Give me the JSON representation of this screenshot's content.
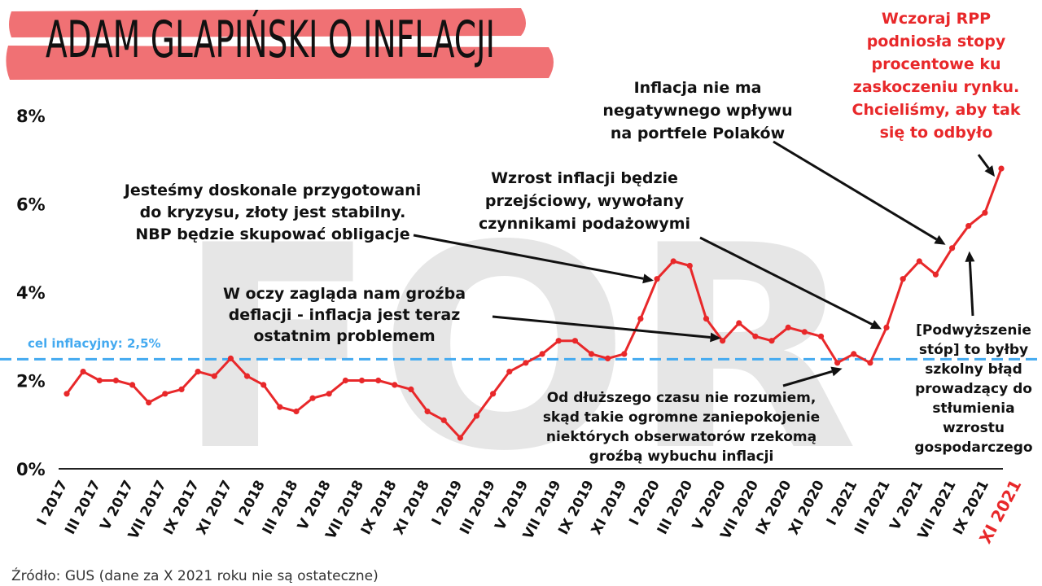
{
  "chart_data": {
    "type": "line",
    "title": "ADAM GLAPIŃSKI O INFLACJI",
    "source": "Źródło: GUS (dane za X 2021 roku nie są ostateczne)",
    "ylim": [
      0,
      8
    ],
    "yticks": [
      "0%",
      "2%",
      "4%",
      "6%",
      "8%"
    ],
    "ytick_values": [
      0,
      2,
      4,
      6,
      8
    ],
    "grid": false,
    "x_labels": [
      "I 2017",
      "III 2017",
      "V 2017",
      "VII 2017",
      "IX 2017",
      "XI 2017",
      "I 2018",
      "III 2018",
      "V 2018",
      "VII 2018",
      "IX 2018",
      "XI 2018",
      "I 2019",
      "III 2019",
      "V 2019",
      "VII 2019",
      "IX 2019",
      "XI 2019",
      "I 2020",
      "III 2020",
      "V 2020",
      "VII 2020",
      "IX 2020",
      "XI 2020",
      "I 2021",
      "III 2021",
      "V 2021",
      "VII 2021",
      "IX 2021",
      "XI 2021"
    ],
    "x_label_highlight_index": 29,
    "series": [
      {
        "values": [
          1.7,
          2.2,
          2.0,
          2.0,
          1.9,
          1.5,
          1.7,
          1.8,
          2.2,
          2.1,
          2.5,
          2.1,
          1.9,
          1.4,
          1.3,
          1.6,
          1.7,
          2.0,
          2.0,
          2.0,
          1.9,
          1.8,
          1.3,
          1.1,
          0.7,
          1.2,
          1.7,
          2.2,
          2.4,
          2.6,
          2.9,
          2.9,
          2.6,
          2.5,
          2.6,
          3.4,
          4.3,
          4.7,
          4.6,
          3.4,
          2.9,
          3.3,
          3.0,
          2.9,
          3.2,
          3.1,
          3.0,
          2.4,
          2.6,
          2.4,
          3.2,
          4.3,
          4.7,
          4.4,
          5.0,
          5.5,
          5.8,
          6.8
        ],
        "color": "#e8282a"
      }
    ],
    "reference_line": {
      "value": 2.5,
      "label": "cel inflacyjny: 2,5%",
      "color": "#44aaf0"
    },
    "annotations": [
      {
        "lines": [
          "Jesteśmy doskonale przygotowani",
          "do kryzysu, złoty jest stabilny.",
          "NBP będzie skupować obligacje"
        ],
        "color": "#111111"
      },
      {
        "lines": [
          "Wzrost inflacji będzie",
          "przejściowy, wywołany",
          "czynnikami podażowymi"
        ],
        "color": "#111111"
      },
      {
        "lines": [
          "Inflacja nie ma",
          "negatywnego wpływu",
          "na portfele Polaków"
        ],
        "color": "#111111"
      },
      {
        "lines": [
          "Wczoraj RPP",
          "podniosła stopy",
          "procentowe ku",
          "zaskoczeniu rynku.",
          "Chcieliśmy, aby tak",
          "się to odbyło"
        ],
        "color": "#e8282a"
      },
      {
        "lines": [
          "W oczy zagląda nam groźba",
          "deflacji - inflacja jest teraz",
          "ostatnim problemem"
        ],
        "color": "#111111"
      },
      {
        "lines": [
          "Od dłuższego czasu nie rozumiem,",
          "skąd takie ogromne zaniepokojenie",
          "niektórych obserwatorów rzekomą",
          "groźbą wybuchu inflacji"
        ],
        "color": "#111111"
      },
      {
        "lines": [
          "[Podwyższenie",
          "stóp] to byłby",
          "szkolny błąd",
          "prowadzący do",
          "stłumienia",
          "wzrostu",
          "gospodarczego"
        ],
        "color": "#111111"
      }
    ],
    "watermark": "FOR"
  }
}
